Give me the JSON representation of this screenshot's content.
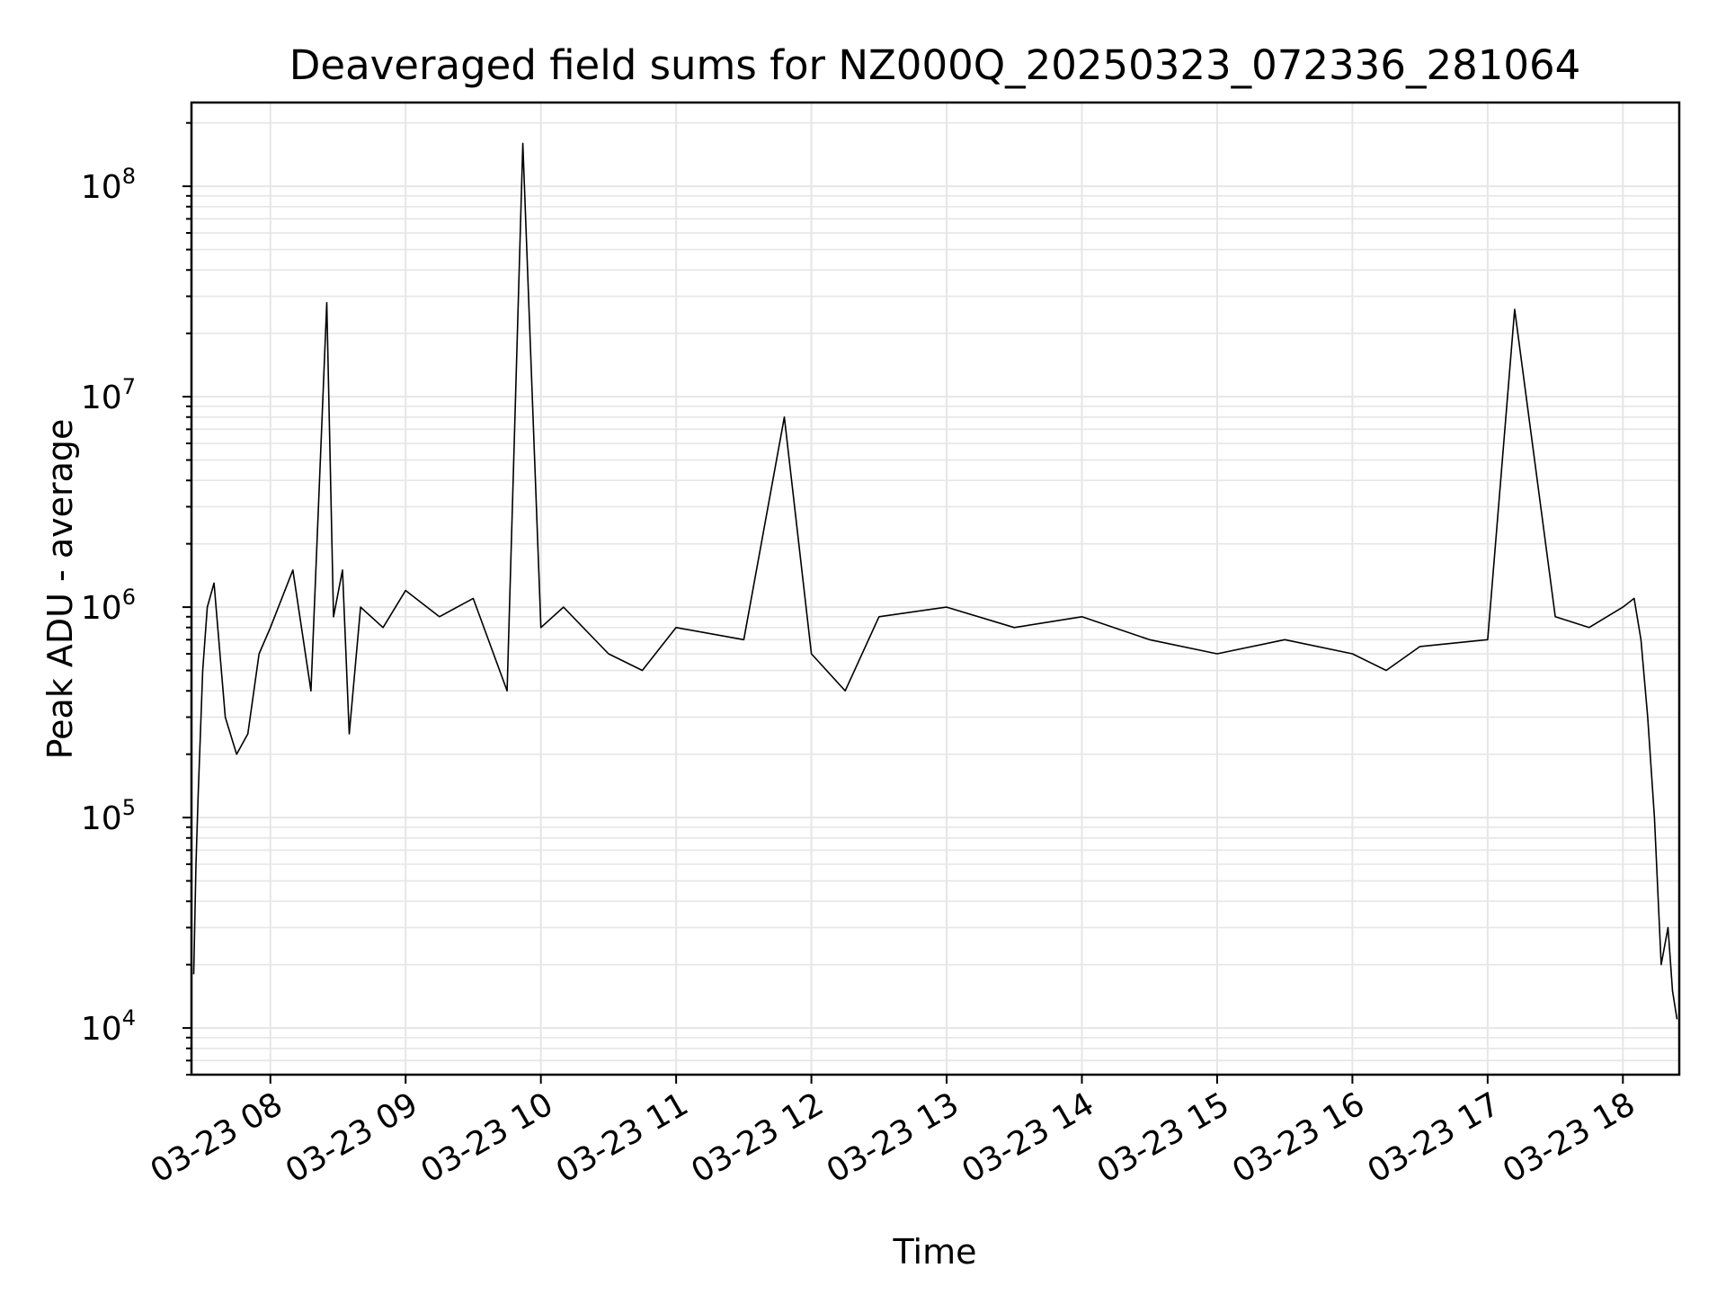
{
  "chart_data": {
    "type": "line",
    "title": "Deaveraged field sums for NZ000Q_20250323_072336_281064",
    "xlabel": "Time",
    "ylabel": "Peak ADU - average",
    "yscale": "log",
    "ylim": [
      6000,
      250000000
    ],
    "xlim": [
      "03-23 07:25",
      "03-23 18:25"
    ],
    "grid": true,
    "line_color": "#000000",
    "grid_color": "#e6e6e6",
    "x_ticks": [
      "03-23 08",
      "03-23 09",
      "03-23 10",
      "03-23 11",
      "03-23 12",
      "03-23 13",
      "03-23 14",
      "03-23 15",
      "03-23 16",
      "03-23 17",
      "03-23 18"
    ],
    "y_ticks": [
      {
        "value": 10000,
        "base": "10",
        "exp": "4"
      },
      {
        "value": 100000,
        "base": "10",
        "exp": "5"
      },
      {
        "value": 1000000,
        "base": "10",
        "exp": "6"
      },
      {
        "value": 10000000,
        "base": "10",
        "exp": "7"
      },
      {
        "value": 100000000,
        "base": "10",
        "exp": "8"
      }
    ],
    "series": [
      {
        "x": [
          "03-23 07:26",
          "03-23 07:27",
          "03-23 07:28",
          "03-23 07:30",
          "03-23 07:32",
          "03-23 07:35",
          "03-23 07:40",
          "03-23 07:45",
          "03-23 07:50",
          "03-23 07:55",
          "03-23 08:00",
          "03-23 08:10",
          "03-23 08:18",
          "03-23 08:25",
          "03-23 08:28",
          "03-23 08:32",
          "03-23 08:35",
          "03-23 08:40",
          "03-23 08:50",
          "03-23 09:00",
          "03-23 09:15",
          "03-23 09:30",
          "03-23 09:45",
          "03-23 09:52",
          "03-23 10:00",
          "03-23 10:10",
          "03-23 10:30",
          "03-23 10:45",
          "03-23 11:00",
          "03-23 11:30",
          "03-23 11:48",
          "03-23 12:00",
          "03-23 12:15",
          "03-23 12:30",
          "03-23 13:00",
          "03-23 13:30",
          "03-23 14:00",
          "03-23 14:30",
          "03-23 15:00",
          "03-23 15:30",
          "03-23 16:00",
          "03-23 16:15",
          "03-23 16:30",
          "03-23 17:00",
          "03-23 17:12",
          "03-23 17:30",
          "03-23 17:45",
          "03-23 18:00",
          "03-23 18:05",
          "03-23 18:08",
          "03-23 18:11",
          "03-23 18:14",
          "03-23 18:17",
          "03-23 18:20",
          "03-23 18:22",
          "03-23 18:24"
        ],
        "y": [
          18000,
          60000,
          130000,
          500000,
          1000000,
          1300000,
          300000,
          200000,
          250000,
          600000,
          800000,
          1500000,
          400000,
          28000000,
          900000,
          1500000,
          250000,
          1000000,
          800000,
          1200000,
          900000,
          1100000,
          400000,
          160000000,
          800000,
          1000000,
          600000,
          500000,
          800000,
          700000,
          8000000,
          600000,
          400000,
          900000,
          1000000,
          800000,
          900000,
          700000,
          600000,
          700000,
          600000,
          500000,
          650000,
          700000,
          26000000,
          900000,
          800000,
          1000000,
          1100000,
          700000,
          300000,
          100000,
          20000,
          30000,
          15000,
          11000
        ]
      }
    ]
  }
}
